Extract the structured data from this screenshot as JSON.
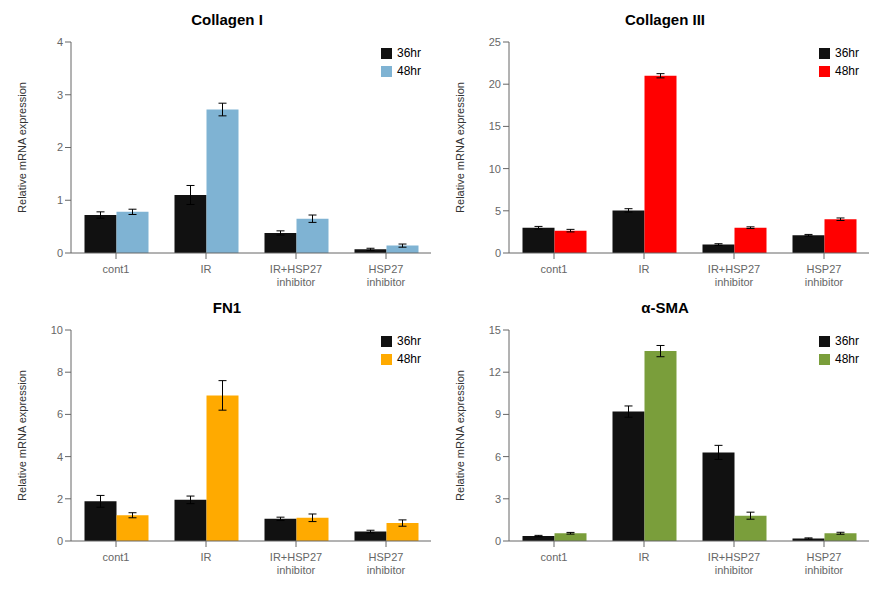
{
  "chart_data": [
    {
      "type": "bar",
      "title": "Collagen I",
      "ylabel": "Relative mRNA expression",
      "categories": [
        "cont1",
        "IR",
        "IR+HSP27\ninhibitor",
        "HSP27\ninhibitor"
      ],
      "series": [
        {
          "name": "36hr",
          "color": "#111111",
          "values": [
            0.72,
            1.1,
            0.38,
            0.07
          ],
          "errors": [
            0.06,
            0.18,
            0.04,
            0.02
          ]
        },
        {
          "name": "48hr",
          "color": "#7fb3d3",
          "values": [
            0.78,
            2.72,
            0.65,
            0.14
          ],
          "errors": [
            0.05,
            0.12,
            0.07,
            0.03
          ]
        }
      ],
      "ylim": [
        0,
        4
      ],
      "yticks": [
        0,
        1,
        2,
        3,
        4
      ],
      "grid": false,
      "legend": "upper right"
    },
    {
      "type": "bar",
      "title": "Collagen III",
      "ylabel": "Relative mRNA expression",
      "categories": [
        "cont1",
        "IR",
        "IR+HSP27\ninhibitor",
        "HSP27\ninhibitor"
      ],
      "series": [
        {
          "name": "36hr",
          "color": "#111111",
          "values": [
            3.0,
            5.05,
            1.0,
            2.1
          ],
          "errors": [
            0.15,
            0.2,
            0.1,
            0.1
          ]
        },
        {
          "name": "48hr",
          "color": "#ff0000",
          "values": [
            2.65,
            21.0,
            3.0,
            4.0
          ],
          "errors": [
            0.15,
            0.25,
            0.1,
            0.15
          ]
        }
      ],
      "ylim": [
        0,
        25
      ],
      "yticks": [
        0,
        5,
        10,
        15,
        20,
        25
      ],
      "grid": false,
      "legend": "upper right"
    },
    {
      "type": "bar",
      "title": "FN1",
      "ylabel": "Relative mRNA expression",
      "categories": [
        "cont1",
        "IR",
        "IR+HSP27\ninhibitor",
        "HSP27\ninhibitor"
      ],
      "series": [
        {
          "name": "36hr",
          "color": "#111111",
          "values": [
            1.88,
            1.95,
            1.05,
            0.45
          ],
          "errors": [
            0.28,
            0.18,
            0.08,
            0.06
          ]
        },
        {
          "name": "48hr",
          "color": "#ffaa00",
          "values": [
            1.22,
            6.9,
            1.1,
            0.85
          ],
          "errors": [
            0.12,
            0.7,
            0.18,
            0.15
          ]
        }
      ],
      "ylim": [
        0,
        10
      ],
      "yticks": [
        0,
        2,
        4,
        6,
        8,
        10
      ],
      "grid": false,
      "legend": "upper right"
    },
    {
      "type": "bar",
      "title": "α-SMA",
      "ylabel": "Relative mRNA expression",
      "categories": [
        "cont1",
        "IR",
        "IR+HSP27\ninhibitor",
        "HSP27\ninhibitor"
      ],
      "series": [
        {
          "name": "36hr",
          "color": "#111111",
          "values": [
            0.35,
            9.2,
            6.3,
            0.18
          ],
          "errors": [
            0.05,
            0.4,
            0.5,
            0.04
          ]
        },
        {
          "name": "48hr",
          "color": "#7a9e3b",
          "values": [
            0.55,
            13.5,
            1.8,
            0.55
          ],
          "errors": [
            0.06,
            0.4,
            0.25,
            0.07
          ]
        }
      ],
      "ylim": [
        0,
        15
      ],
      "yticks": [
        0,
        3,
        6,
        9,
        12,
        15
      ],
      "grid": false,
      "legend": "upper right"
    }
  ]
}
